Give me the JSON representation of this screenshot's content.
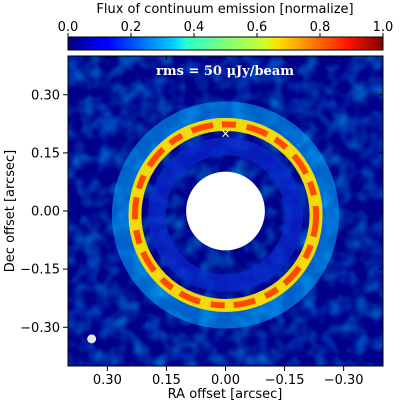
{
  "chart_data": {
    "type": "heatmap",
    "title": "",
    "xlabel": "RA offset [arcsec]",
    "ylabel": "Dec offset [arcsec]",
    "colorbar": {
      "label": "Flux of continuum emission [normalize]",
      "range": [
        0.0,
        1.0
      ],
      "ticks": [
        "0.0",
        "0.2",
        "0.4",
        "0.6",
        "0.8",
        "1.0"
      ],
      "colormap": "jet"
    },
    "xlim": [
      0.4,
      -0.4
    ],
    "ylim": [
      -0.4,
      0.4
    ],
    "x_ticks": [
      {
        "value": 0.3,
        "label": "0.30"
      },
      {
        "value": 0.15,
        "label": "0.15"
      },
      {
        "value": 0.0,
        "label": "0.00"
      },
      {
        "value": -0.15,
        "label": "−0.15"
      },
      {
        "value": -0.3,
        "label": "−0.30"
      }
    ],
    "y_ticks": [
      {
        "value": 0.3,
        "label": "0.30"
      },
      {
        "value": 0.15,
        "label": "0.15"
      },
      {
        "value": 0.0,
        "label": "0.00"
      },
      {
        "value": -0.15,
        "label": "−0.15"
      },
      {
        "value": -0.3,
        "label": "−0.30"
      }
    ],
    "annotation": "rms = 50 μJy/beam",
    "ring": {
      "center": [
        0.0,
        -0.01
      ],
      "radius": 0.23,
      "peak_flux": 0.9
    },
    "masked_center_radius_arcsec": 0.1,
    "star_marker": {
      "ra": 0.0,
      "dec": 0.2,
      "symbol": "×"
    },
    "beam": {
      "ra": 0.34,
      "dec": -0.33
    },
    "background_flux": 0.0,
    "colors": {
      "background": "#00008b",
      "mask": "#ffffff",
      "marker": "#ffffff"
    }
  }
}
